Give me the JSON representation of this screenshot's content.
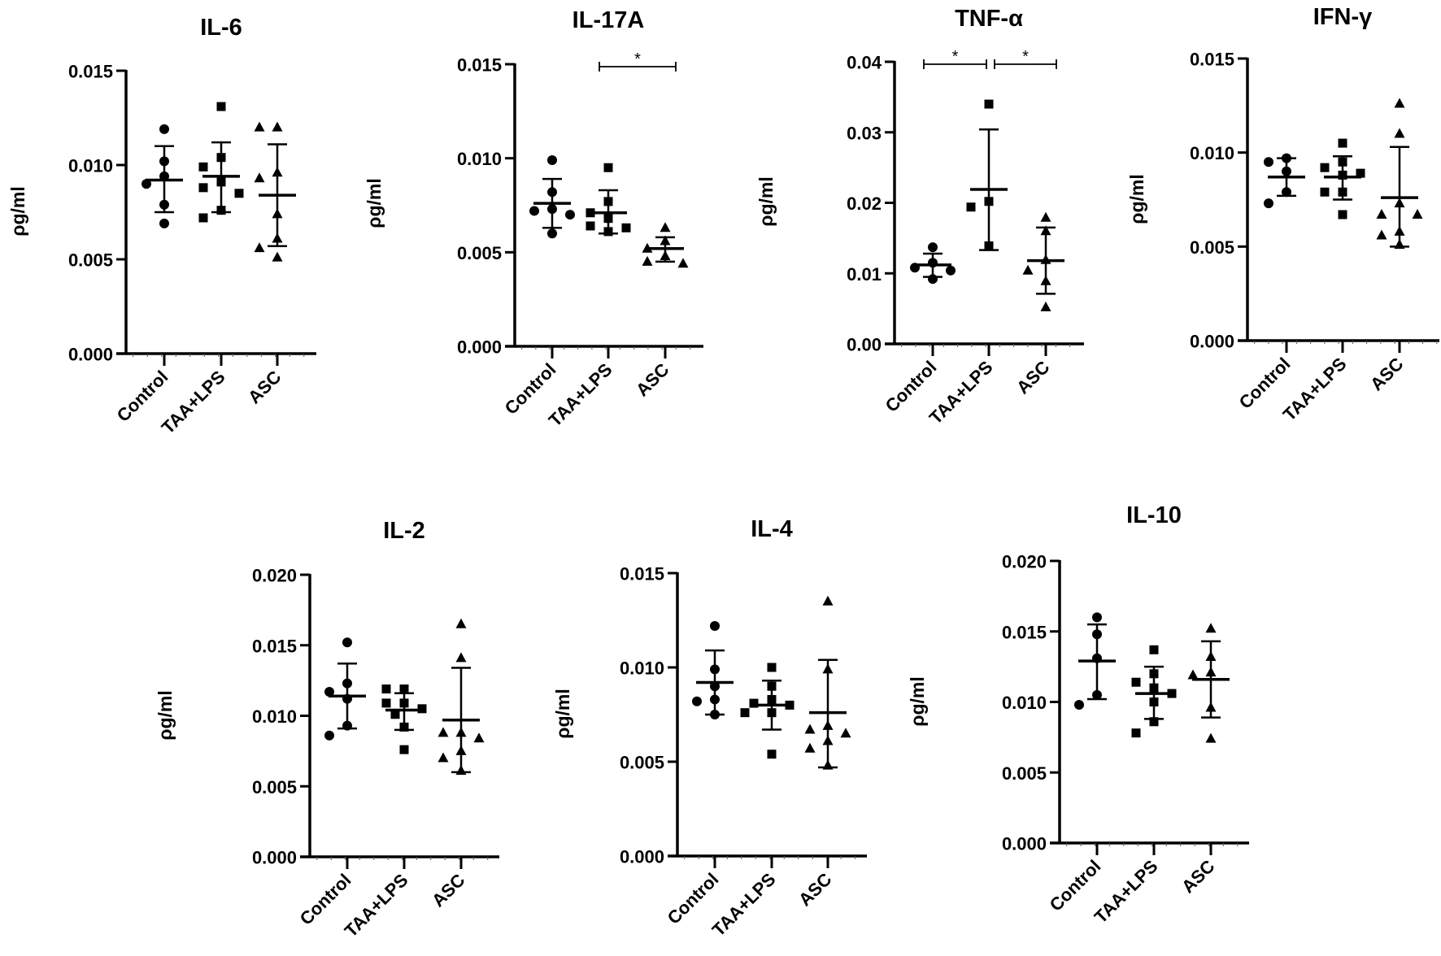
{
  "figure": {
    "ylabel": "ρg/ml",
    "categories": [
      "Control",
      "TAA+LPS",
      "ASC"
    ],
    "marker_color": "#000000"
  },
  "chart_data": [
    {
      "type": "scatter",
      "id": "il6",
      "title": "IL-6",
      "xlabel": "",
      "ylabel": "ρg/ml",
      "ylim": [
        0,
        0.015
      ],
      "yticks": [
        0.0,
        0.005,
        0.01,
        0.015
      ],
      "ytick_labels": [
        "0.000",
        "0.005",
        "0.010",
        "0.015"
      ],
      "categories": [
        "Control",
        "TAA+LPS",
        "ASC"
      ],
      "series": [
        {
          "name": "Control",
          "marker": "circle",
          "values": [
            0.0119,
            0.0102,
            0.0094,
            0.009,
            0.0079,
            0.0069
          ],
          "mean": 0.0092,
          "sd_upper": 0.011,
          "sd_lower": 0.0075
        },
        {
          "name": "TAA+LPS",
          "marker": "square",
          "values": [
            0.0131,
            0.0104,
            0.0099,
            0.0091,
            0.0088,
            0.0085,
            0.0076,
            0.0072
          ],
          "mean": 0.0094,
          "sd_upper": 0.0112,
          "sd_lower": 0.0075
        },
        {
          "name": "ASC",
          "marker": "triangle",
          "values": [
            0.012,
            0.012,
            0.0096,
            0.0093,
            0.0074,
            0.0061,
            0.0056,
            0.0051
          ],
          "mean": 0.0084,
          "sd_upper": 0.0111,
          "sd_lower": 0.0057
        }
      ],
      "significance": []
    },
    {
      "type": "scatter",
      "id": "il17a",
      "title": "IL-17A",
      "xlabel": "",
      "ylabel": "ρg/ml",
      "ylim": [
        0,
        0.015
      ],
      "yticks": [
        0.0,
        0.005,
        0.01,
        0.015
      ],
      "ytick_labels": [
        "0.000",
        "0.005",
        "0.010",
        "0.015"
      ],
      "categories": [
        "Control",
        "TAA+LPS",
        "ASC"
      ],
      "series": [
        {
          "name": "Control",
          "marker": "circle",
          "values": [
            0.0099,
            0.0082,
            0.0073,
            0.0072,
            0.007,
            0.006
          ],
          "mean": 0.0076,
          "sd_upper": 0.0089,
          "sd_lower": 0.0063
        },
        {
          "name": "TAA+LPS",
          "marker": "square",
          "values": [
            0.0095,
            0.0077,
            0.0071,
            0.0068,
            0.0064,
            0.0063,
            0.0061
          ],
          "mean": 0.0071,
          "sd_upper": 0.0083,
          "sd_lower": 0.006
        },
        {
          "name": "ASC",
          "marker": "triangle",
          "values": [
            0.0063,
            0.0056,
            0.0052,
            0.0048,
            0.0045,
            0.0044
          ],
          "mean": 0.0052,
          "sd_upper": 0.0058,
          "sd_lower": 0.0045
        }
      ],
      "significance": [
        {
          "from": "TAA+LPS",
          "to": "ASC",
          "label": "*"
        }
      ]
    },
    {
      "type": "scatter",
      "id": "tnfa",
      "title": "TNF-α",
      "xlabel": "",
      "ylabel": "ρg/ml",
      "ylim": [
        0,
        0.04
      ],
      "yticks": [
        0.0,
        0.01,
        0.02,
        0.03,
        0.04
      ],
      "ytick_labels": [
        "0.00",
        "0.01",
        "0.02",
        "0.03",
        "0.04"
      ],
      "categories": [
        "Control",
        "TAA+LPS",
        "ASC"
      ],
      "series": [
        {
          "name": "Control",
          "marker": "circle",
          "values": [
            0.0137,
            0.0115,
            0.0108,
            0.0104,
            0.0092
          ],
          "mean": 0.0112,
          "sd_upper": 0.0128,
          "sd_lower": 0.0095
        },
        {
          "name": "TAA+LPS",
          "marker": "square",
          "values": [
            0.034,
            0.0202,
            0.0194,
            0.0139
          ],
          "mean": 0.0219,
          "sd_upper": 0.0304,
          "sd_lower": 0.0133
        },
        {
          "name": "ASC",
          "marker": "triangle",
          "values": [
            0.0179,
            0.016,
            0.0119,
            0.0104,
            0.0089,
            0.0052
          ],
          "mean": 0.0118,
          "sd_upper": 0.0165,
          "sd_lower": 0.0071
        }
      ],
      "significance": [
        {
          "from": "Control",
          "to": "TAA+LPS",
          "label": "*"
        },
        {
          "from": "TAA+LPS",
          "to": "ASC",
          "label": "*"
        }
      ]
    },
    {
      "type": "scatter",
      "id": "ifng",
      "title": "IFN-γ",
      "xlabel": "",
      "ylabel": "ρg/ml",
      "ylim": [
        0,
        0.015
      ],
      "yticks": [
        0.0,
        0.005,
        0.01,
        0.015
      ],
      "ytick_labels": [
        "0.000",
        "0.005",
        "0.010",
        "0.015"
      ],
      "categories": [
        "Control",
        "TAA+LPS",
        "ASC"
      ],
      "series": [
        {
          "name": "Control",
          "marker": "circle",
          "values": [
            0.0097,
            0.0095,
            0.009,
            0.0079,
            0.0073
          ],
          "mean": 0.0087,
          "sd_upper": 0.0097,
          "sd_lower": 0.0077
        },
        {
          "name": "TAA+LPS",
          "marker": "square",
          "values": [
            0.0105,
            0.0095,
            0.0092,
            0.0089,
            0.0088,
            0.0079,
            0.0079,
            0.0067
          ],
          "mean": 0.0087,
          "sd_upper": 0.0098,
          "sd_lower": 0.0075
        },
        {
          "name": "ASC",
          "marker": "triangle",
          "values": [
            0.0126,
            0.011,
            0.0073,
            0.0067,
            0.0067,
            0.0058,
            0.0056,
            0.0051
          ],
          "mean": 0.0076,
          "sd_upper": 0.0103,
          "sd_lower": 0.005
        }
      ],
      "significance": []
    },
    {
      "type": "scatter",
      "id": "il2",
      "title": "IL-2",
      "xlabel": "",
      "ylabel": "ρg/ml",
      "ylim": [
        0,
        0.02
      ],
      "yticks": [
        0.0,
        0.005,
        0.01,
        0.015,
        0.02
      ],
      "ytick_labels": [
        "0.000",
        "0.005",
        "0.010",
        "0.015",
        "0.020"
      ],
      "categories": [
        "Control",
        "TAA+LPS",
        "ASC"
      ],
      "series": [
        {
          "name": "Control",
          "marker": "circle",
          "values": [
            0.0152,
            0.0123,
            0.0117,
            0.0112,
            0.0093,
            0.0086
          ],
          "mean": 0.0114,
          "sd_upper": 0.0137,
          "sd_lower": 0.0091
        },
        {
          "name": "TAA+LPS",
          "marker": "square",
          "values": [
            0.0119,
            0.0119,
            0.0109,
            0.0109,
            0.0105,
            0.0101,
            0.0092,
            0.0076
          ],
          "mean": 0.0104,
          "sd_upper": 0.0116,
          "sd_lower": 0.009
        },
        {
          "name": "ASC",
          "marker": "triangle",
          "values": [
            0.0165,
            0.0141,
            0.0088,
            0.0088,
            0.0084,
            0.0075,
            0.007,
            0.0061
          ],
          "mean": 0.0097,
          "sd_upper": 0.0134,
          "sd_lower": 0.006
        }
      ],
      "significance": []
    },
    {
      "type": "scatter",
      "id": "il4",
      "title": "IL-4",
      "xlabel": "",
      "ylabel": "ρg/ml",
      "ylim": [
        0,
        0.015
      ],
      "yticks": [
        0.0,
        0.005,
        0.01,
        0.015
      ],
      "ytick_labels": [
        "0.000",
        "0.005",
        "0.010",
        "0.015"
      ],
      "categories": [
        "Control",
        "TAA+LPS",
        "ASC"
      ],
      "series": [
        {
          "name": "Control",
          "marker": "circle",
          "values": [
            0.0122,
            0.0099,
            0.009,
            0.0083,
            0.0082,
            0.0075
          ],
          "mean": 0.0092,
          "sd_upper": 0.0109,
          "sd_lower": 0.0075
        },
        {
          "name": "TAA+LPS",
          "marker": "square",
          "values": [
            0.01,
            0.009,
            0.0083,
            0.0081,
            0.008,
            0.0076,
            0.0076,
            0.0054
          ],
          "mean": 0.008,
          "sd_upper": 0.0093,
          "sd_lower": 0.0067
        },
        {
          "name": "ASC",
          "marker": "triangle",
          "values": [
            0.0135,
            0.0099,
            0.0069,
            0.0067,
            0.0065,
            0.0061,
            0.0057,
            0.0048
          ],
          "mean": 0.0076,
          "sd_upper": 0.0104,
          "sd_lower": 0.0047
        }
      ],
      "significance": []
    },
    {
      "type": "scatter",
      "id": "il10",
      "title": "IL-10",
      "xlabel": "",
      "ylabel": "ρg/ml",
      "ylim": [
        0,
        0.02
      ],
      "yticks": [
        0.0,
        0.005,
        0.01,
        0.015,
        0.02
      ],
      "ytick_labels": [
        "0.000",
        "0.005",
        "0.010",
        "0.015",
        "0.020"
      ],
      "categories": [
        "Control",
        "TAA+LPS",
        "ASC"
      ],
      "series": [
        {
          "name": "Control",
          "marker": "circle",
          "values": [
            0.016,
            0.0148,
            0.0131,
            0.0105,
            0.0098
          ],
          "mean": 0.0129,
          "sd_upper": 0.0155,
          "sd_lower": 0.0102
        },
        {
          "name": "TAA+LPS",
          "marker": "square",
          "values": [
            0.0137,
            0.012,
            0.0114,
            0.011,
            0.0106,
            0.01,
            0.0086,
            0.0078
          ],
          "mean": 0.0106,
          "sd_upper": 0.0125,
          "sd_lower": 0.0088
        },
        {
          "name": "ASC",
          "marker": "triangle",
          "values": [
            0.0152,
            0.0132,
            0.0121,
            0.0119,
            0.0096,
            0.0074
          ],
          "mean": 0.0116,
          "sd_upper": 0.0143,
          "sd_lower": 0.0089
        }
      ],
      "significance": []
    }
  ]
}
